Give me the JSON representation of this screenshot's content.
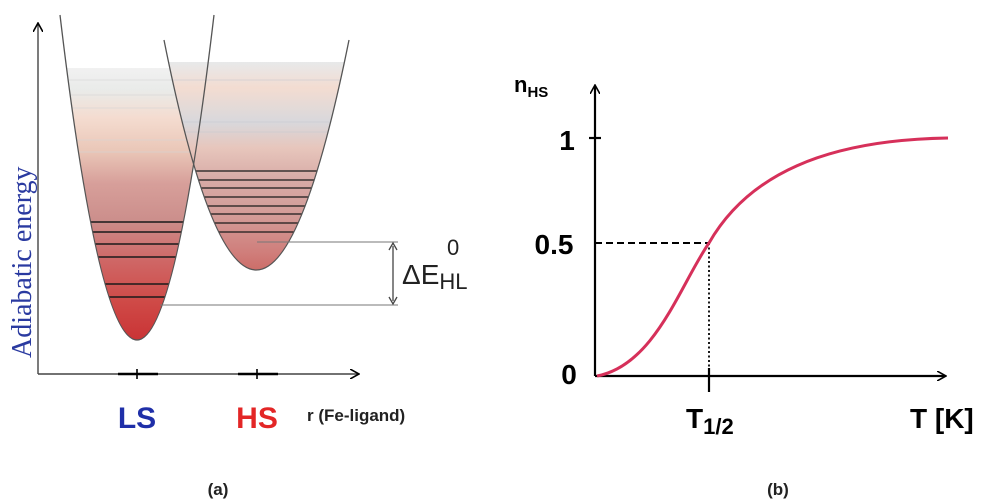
{
  "panel_a": {
    "ylabel": "Adiabatic energy",
    "xlabel": "r (Fe-ligand)",
    "ls_label": "LS",
    "hs_label": "HS",
    "delta_main": "ΔE",
    "delta_sub": "HL",
    "delta_sup": "0",
    "caption": "(a)",
    "colors": {
      "ls": "#1f2fa8",
      "hs": "#e32626",
      "axis_label": "#2a3aa0"
    }
  },
  "panel_b": {
    "ylabel_main": "n",
    "ylabel_sub": "HS",
    "xlabel": "T [K]",
    "tick_1": "1",
    "tick_05": "0.5",
    "tick_0": "0",
    "t_half_main": "T",
    "t_half_sub": "1/2",
    "caption": "(b)",
    "colors": {
      "curve": "#d6305a"
    }
  }
}
